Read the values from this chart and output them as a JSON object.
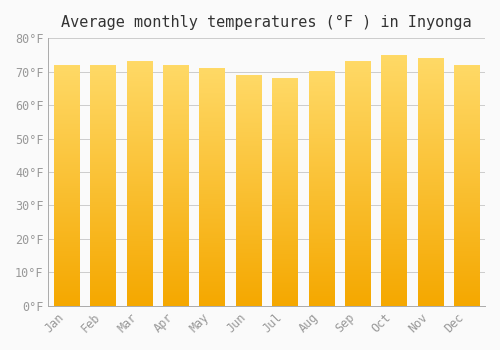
{
  "title": "Average monthly temperatures (°F ) in Inyonga",
  "months": [
    "Jan",
    "Feb",
    "Mar",
    "Apr",
    "May",
    "Jun",
    "Jul",
    "Aug",
    "Sep",
    "Oct",
    "Nov",
    "Dec"
  ],
  "values": [
    72,
    72,
    73,
    72,
    71,
    69,
    68,
    70,
    73,
    75,
    74,
    72
  ],
  "bar_color_bottom": "#F5A800",
  "bar_color_top": "#FFD966",
  "ylim": [
    0,
    80
  ],
  "yticks": [
    0,
    10,
    20,
    30,
    40,
    50,
    60,
    70,
    80
  ],
  "ytick_labels": [
    "0°F",
    "10°F",
    "20°F",
    "30°F",
    "40°F",
    "50°F",
    "60°F",
    "70°F",
    "80°F"
  ],
  "background_color": "#FAFAFA",
  "grid_color": "#CCCCCC",
  "title_fontsize": 11,
  "tick_fontsize": 8.5,
  "bar_width": 0.7
}
